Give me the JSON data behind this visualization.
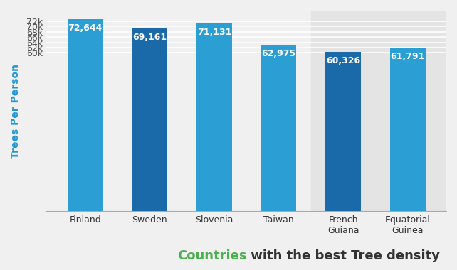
{
  "categories": [
    "Finland",
    "Sweden",
    "Slovenia",
    "Taiwan",
    "French\nGuiana",
    "Equatorial\nGuinea"
  ],
  "values": [
    72644,
    69161,
    71131,
    62975,
    60326,
    61791
  ],
  "bar_colors": [
    "#2b9fd4",
    "#1a6aaa",
    "#2b9fd4",
    "#2b9fd4",
    "#1a6aaa",
    "#2b9fd4"
  ],
  "label_texts": [
    "72,644",
    "69,161",
    "71,131",
    "62,975",
    "60,326",
    "61,791"
  ],
  "ylabel": "Trees Per Person",
  "ylabel_color": "#2196d4",
  "ylim_min": 0,
  "ylim_max": 76000,
  "yticks": [
    60000,
    62000,
    64000,
    66000,
    68000,
    70000,
    72000
  ],
  "ytick_labels": [
    "60k",
    "62k",
    "64k",
    "66k",
    "68k",
    "70k",
    "72k"
  ],
  "title_part1": "Countries",
  "title_part2": " with the best Tree density",
  "title_color1": "#4caf50",
  "title_color2": "#333333",
  "title_fontsize": 13,
  "bar_label_fontsize": 9,
  "bar_label_color": "#ffffff",
  "grid_color": "#ffffff",
  "fig_bg": "#f0f0f0",
  "plot_bg_left": "#f0f0f0",
  "plot_bg_right": "#e4e4e4"
}
